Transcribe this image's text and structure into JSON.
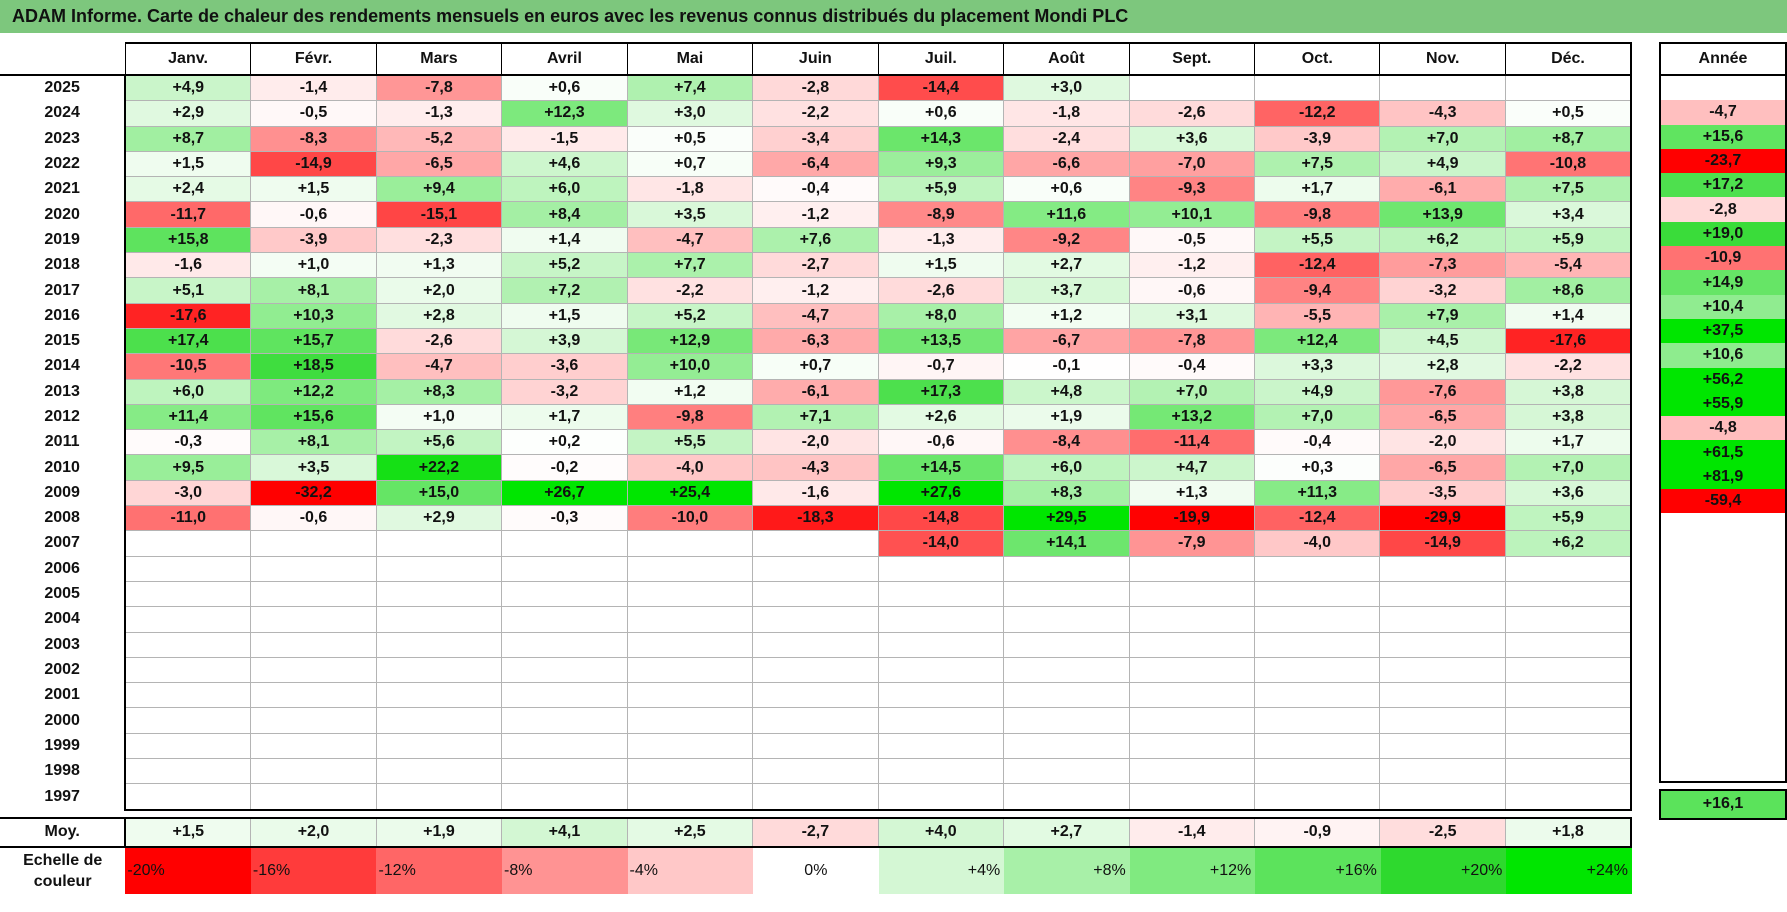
{
  "title": "ADAM Informe. Carte de chaleur des rendements mensuels en euros avec les revenus connus distribués du placement Mondi PLC",
  "chart_data": {
    "type": "heatmap",
    "title": "ADAM Informe. Carte de chaleur des rendements mensuels en euros avec les revenus connus distribués du placement Mondi PLC",
    "columns": [
      "Janv.",
      "Févr.",
      "Mars",
      "Avril",
      "Mai",
      "Juin",
      "Juil.",
      "Août",
      "Sept.",
      "Oct.",
      "Nov.",
      "Déc."
    ],
    "year_column_label": "Année",
    "average_row_label": "Moy.",
    "rows": [
      {
        "year": "2025",
        "months": [
          4.9,
          -1.4,
          -7.8,
          0.6,
          7.4,
          -2.8,
          -14.4,
          3.0,
          null,
          null,
          null,
          null
        ],
        "annual": null
      },
      {
        "year": "2024",
        "months": [
          2.9,
          -0.5,
          -1.3,
          12.3,
          3.0,
          -2.2,
          0.6,
          -1.8,
          -2.6,
          -12.2,
          -4.3,
          0.5
        ],
        "annual": -4.7
      },
      {
        "year": "2023",
        "months": [
          8.7,
          -8.3,
          -5.2,
          -1.5,
          0.5,
          -3.4,
          14.3,
          -2.4,
          3.6,
          -3.9,
          7.0,
          8.7
        ],
        "annual": 15.6
      },
      {
        "year": "2022",
        "months": [
          1.5,
          -14.9,
          -6.5,
          4.6,
          0.7,
          -6.4,
          9.3,
          -6.6,
          -7.0,
          7.5,
          4.9,
          -10.8
        ],
        "annual": -23.7
      },
      {
        "year": "2021",
        "months": [
          2.4,
          1.5,
          9.4,
          6.0,
          -1.8,
          -0.4,
          5.9,
          0.6,
          -9.3,
          1.7,
          -6.1,
          7.5
        ],
        "annual": 17.2
      },
      {
        "year": "2020",
        "months": [
          -11.7,
          -0.6,
          -15.1,
          8.4,
          3.5,
          -1.2,
          -8.9,
          11.6,
          10.1,
          -9.8,
          13.9,
          3.4
        ],
        "annual": -2.8
      },
      {
        "year": "2019",
        "months": [
          15.8,
          -3.9,
          -2.3,
          1.4,
          -4.7,
          7.6,
          -1.3,
          -9.2,
          -0.5,
          5.5,
          6.2,
          5.9
        ],
        "annual": 19.0
      },
      {
        "year": "2018",
        "months": [
          -1.6,
          1.0,
          1.3,
          5.2,
          7.7,
          -2.7,
          1.5,
          2.7,
          -1.2,
          -12.4,
          -7.3,
          -5.4
        ],
        "annual": -10.9
      },
      {
        "year": "2017",
        "months": [
          5.1,
          8.1,
          2.0,
          7.2,
          -2.2,
          -1.2,
          -2.6,
          3.7,
          -0.6,
          -9.4,
          -3.2,
          8.6
        ],
        "annual": 14.9
      },
      {
        "year": "2016",
        "months": [
          -17.6,
          10.3,
          2.8,
          1.5,
          5.2,
          -4.7,
          8.0,
          1.2,
          3.1,
          -5.5,
          7.9,
          1.4
        ],
        "annual": 10.4
      },
      {
        "year": "2015",
        "months": [
          17.4,
          15.7,
          -2.6,
          3.9,
          12.9,
          -6.3,
          13.5,
          -6.7,
          -7.8,
          12.4,
          4.5,
          -17.6
        ],
        "annual": 37.5
      },
      {
        "year": "2014",
        "months": [
          -10.5,
          18.5,
          -4.7,
          -3.6,
          10.0,
          0.7,
          -0.7,
          -0.1,
          -0.4,
          3.3,
          2.8,
          -2.2
        ],
        "annual": 10.6
      },
      {
        "year": "2013",
        "months": [
          6.0,
          12.2,
          8.3,
          -3.2,
          1.2,
          -6.1,
          17.3,
          4.8,
          7.0,
          4.9,
          -7.6,
          3.8
        ],
        "annual": 56.2
      },
      {
        "year": "2012",
        "months": [
          11.4,
          15.6,
          1.0,
          1.7,
          -9.8,
          7.1,
          2.6,
          1.9,
          13.2,
          7.0,
          -6.5,
          3.8
        ],
        "annual": 55.9
      },
      {
        "year": "2011",
        "months": [
          -0.3,
          8.1,
          5.6,
          0.2,
          5.5,
          -2.0,
          -0.6,
          -8.4,
          -11.4,
          -0.4,
          -2.0,
          1.7
        ],
        "annual": -4.8
      },
      {
        "year": "2010",
        "months": [
          9.5,
          3.5,
          22.2,
          -0.2,
          -4.0,
          -4.3,
          14.5,
          6.0,
          4.7,
          0.3,
          -6.5,
          7.0
        ],
        "annual": 61.5
      },
      {
        "year": "2009",
        "months": [
          -3.0,
          -32.2,
          15.0,
          26.7,
          25.4,
          -1.6,
          27.6,
          8.3,
          1.3,
          11.3,
          -3.5,
          3.6
        ],
        "annual": 81.9
      },
      {
        "year": "2008",
        "months": [
          -11.0,
          -0.6,
          2.9,
          -0.3,
          -10.0,
          -18.3,
          -14.8,
          29.5,
          -19.9,
          -12.4,
          -29.9,
          5.9
        ],
        "annual": -59.4
      },
      {
        "year": "2007",
        "months": [
          null,
          null,
          null,
          null,
          null,
          null,
          -14.0,
          14.1,
          -7.9,
          -4.0,
          -14.9,
          6.2
        ],
        "annual": null
      },
      {
        "year": "2006",
        "months": [
          null,
          null,
          null,
          null,
          null,
          null,
          null,
          null,
          null,
          null,
          null,
          null
        ],
        "annual": null
      },
      {
        "year": "2005",
        "months": [
          null,
          null,
          null,
          null,
          null,
          null,
          null,
          null,
          null,
          null,
          null,
          null
        ],
        "annual": null
      },
      {
        "year": "2004",
        "months": [
          null,
          null,
          null,
          null,
          null,
          null,
          null,
          null,
          null,
          null,
          null,
          null
        ],
        "annual": null
      },
      {
        "year": "2003",
        "months": [
          null,
          null,
          null,
          null,
          null,
          null,
          null,
          null,
          null,
          null,
          null,
          null
        ],
        "annual": null
      },
      {
        "year": "2002",
        "months": [
          null,
          null,
          null,
          null,
          null,
          null,
          null,
          null,
          null,
          null,
          null,
          null
        ],
        "annual": null
      },
      {
        "year": "2001",
        "months": [
          null,
          null,
          null,
          null,
          null,
          null,
          null,
          null,
          null,
          null,
          null,
          null
        ],
        "annual": null
      },
      {
        "year": "2000",
        "months": [
          null,
          null,
          null,
          null,
          null,
          null,
          null,
          null,
          null,
          null,
          null,
          null
        ],
        "annual": null
      },
      {
        "year": "1999",
        "months": [
          null,
          null,
          null,
          null,
          null,
          null,
          null,
          null,
          null,
          null,
          null,
          null
        ],
        "annual": null
      },
      {
        "year": "1998",
        "months": [
          null,
          null,
          null,
          null,
          null,
          null,
          null,
          null,
          null,
          null,
          null,
          null
        ],
        "annual": null
      },
      {
        "year": "1997",
        "months": [
          null,
          null,
          null,
          null,
          null,
          null,
          null,
          null,
          null,
          null,
          null,
          null
        ],
        "annual": null
      }
    ],
    "average": {
      "months": [
        1.5,
        2.0,
        1.9,
        4.1,
        2.5,
        -2.7,
        4.0,
        2.7,
        -1.4,
        -0.9,
        -2.5,
        1.8
      ],
      "annual": 16.1
    },
    "color_scale": {
      "label": "Echelle de couleur",
      "stops": [
        {
          "value": -20,
          "label": "-20%",
          "color": "#ff0000"
        },
        {
          "value": -16,
          "label": "-16%",
          "color": "#ff3b3b"
        },
        {
          "value": -12,
          "label": "-12%",
          "color": "#ff6666"
        },
        {
          "value": -8,
          "label": "-8%",
          "color": "#ff9393"
        },
        {
          "value": -4,
          "label": "-4%",
          "color": "#ffc8c8"
        },
        {
          "value": 0,
          "label": "0%",
          "color": "#ffffff"
        },
        {
          "value": 4,
          "label": "+4%",
          "color": "#d4f7d4"
        },
        {
          "value": 8,
          "label": "+8%",
          "color": "#a8f0a8"
        },
        {
          "value": 12,
          "label": "+12%",
          "color": "#80ea80"
        },
        {
          "value": 16,
          "label": "+16%",
          "color": "#5ce35c"
        },
        {
          "value": 20,
          "label": "+20%",
          "color": "#2ed92e"
        },
        {
          "value": 24,
          "label": "+24%",
          "color": "#00e600"
        }
      ]
    }
  }
}
